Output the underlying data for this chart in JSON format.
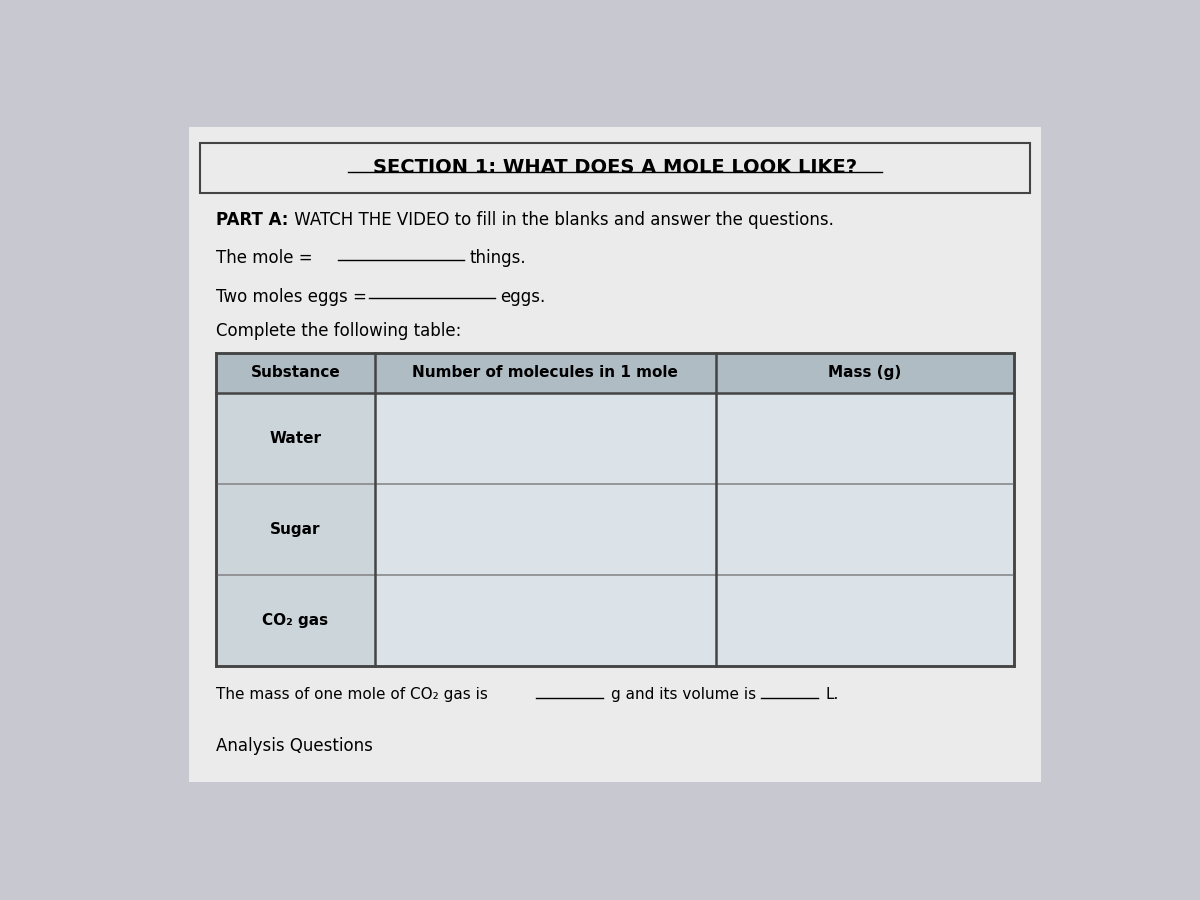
{
  "background_color": "#c8c8d0",
  "page_bg": "#ebebeb",
  "section_title": "SECTION 1: WHAT DOES A MOLE LOOK LIKE?",
  "part_a_bold": "PART A:",
  "part_a_rest": " WATCH THE VIDEO to fill in the blanks and answer the questions.",
  "line1_label": "The mole =",
  "line1_end": "things.",
  "line2_label": "Two moles eggs =",
  "line2_end": "eggs.",
  "table_intro": "Complete the following table:",
  "table_headers": [
    "Substance",
    "Number of molecules in 1 mole",
    "Mass (g)"
  ],
  "table_rows": [
    "Water",
    "Sugar",
    "CO₂ gas"
  ],
  "header_bg": "#b0bcc4",
  "table_bg": "#dce3e8",
  "col1_bg": "#ccd5da",
  "border_color": "#444444",
  "line_color": "#888888",
  "footer_text1": "The mass of one mole of CO₂ gas is",
  "footer_text2": "g and its volume is",
  "footer_text3": "L.",
  "footer_bottom": "Analysis Questions",
  "title_fontsize": 14,
  "body_fontsize": 12,
  "table_header_fontsize": 11,
  "table_body_fontsize": 11
}
